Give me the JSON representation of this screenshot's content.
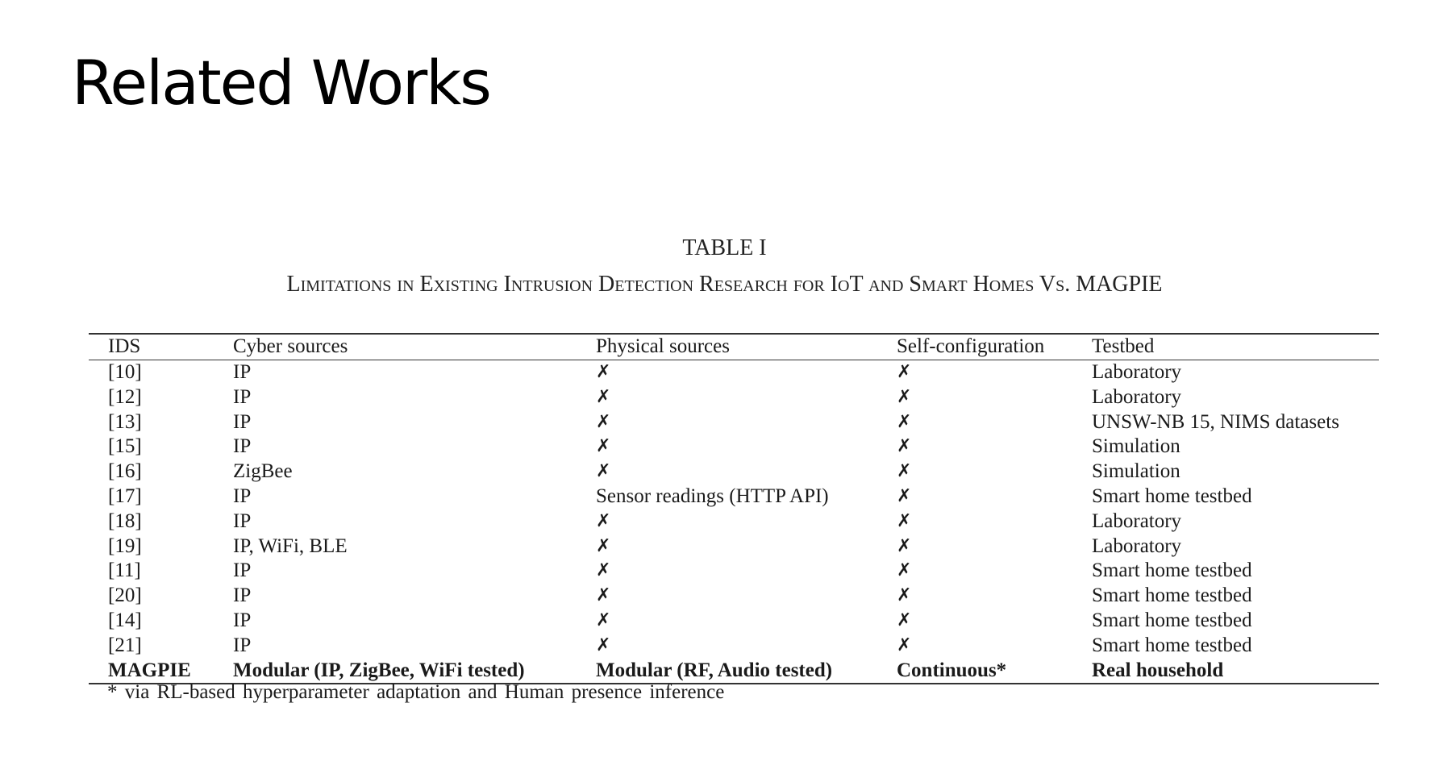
{
  "slide": {
    "title": "Related Works"
  },
  "table": {
    "label": "TABLE I",
    "caption": "Limitations in Existing Intrusion Detection Research for IoT and Smart Homes Vs. MAGPIE",
    "headers": {
      "ids": "IDS",
      "cyber": "Cyber sources",
      "physical": "Physical sources",
      "self_config": "Self-configuration",
      "testbed": "Testbed"
    },
    "rows": [
      {
        "ids": "[10]",
        "cyber": "IP",
        "physical": "✗",
        "self_config": "✗",
        "testbed": "Laboratory"
      },
      {
        "ids": "[12]",
        "cyber": "IP",
        "physical": "✗",
        "self_config": "✗",
        "testbed": "Laboratory"
      },
      {
        "ids": "[13]",
        "cyber": "IP",
        "physical": "✗",
        "self_config": "✗",
        "testbed": "UNSW-NB 15, NIMS datasets"
      },
      {
        "ids": "[15]",
        "cyber": "IP",
        "physical": "✗",
        "self_config": "✗",
        "testbed": "Simulation"
      },
      {
        "ids": "[16]",
        "cyber": "ZigBee",
        "physical": "✗",
        "self_config": "✗",
        "testbed": "Simulation"
      },
      {
        "ids": "[17]",
        "cyber": "IP",
        "physical": "Sensor readings (HTTP API)",
        "self_config": "✗",
        "testbed": "Smart home testbed"
      },
      {
        "ids": "[18]",
        "cyber": "IP",
        "physical": "✗",
        "self_config": "✗",
        "testbed": "Laboratory"
      },
      {
        "ids": "[19]",
        "cyber": "IP, WiFi, BLE",
        "physical": "✗",
        "self_config": "✗",
        "testbed": "Laboratory"
      },
      {
        "ids": "[11]",
        "cyber": "IP",
        "physical": "✗",
        "self_config": "✗",
        "testbed": "Smart home testbed"
      },
      {
        "ids": "[20]",
        "cyber": "IP",
        "physical": "✗",
        "self_config": "✗",
        "testbed": "Smart home testbed"
      },
      {
        "ids": "[14]",
        "cyber": "IP",
        "physical": "✗",
        "self_config": "✗",
        "testbed": "Smart home testbed"
      },
      {
        "ids": "[21]",
        "cyber": "IP",
        "physical": "✗",
        "self_config": "✗",
        "testbed": "Smart home testbed"
      },
      {
        "ids": "MAGPIE",
        "cyber": "Modular (IP, ZigBee, WiFi tested)",
        "physical": "Modular (RF, Audio tested)",
        "self_config": "Continuous*",
        "testbed": "Real household"
      }
    ],
    "footnote": "* via RL-based hyperparameter adaptation and Human presence inference"
  }
}
